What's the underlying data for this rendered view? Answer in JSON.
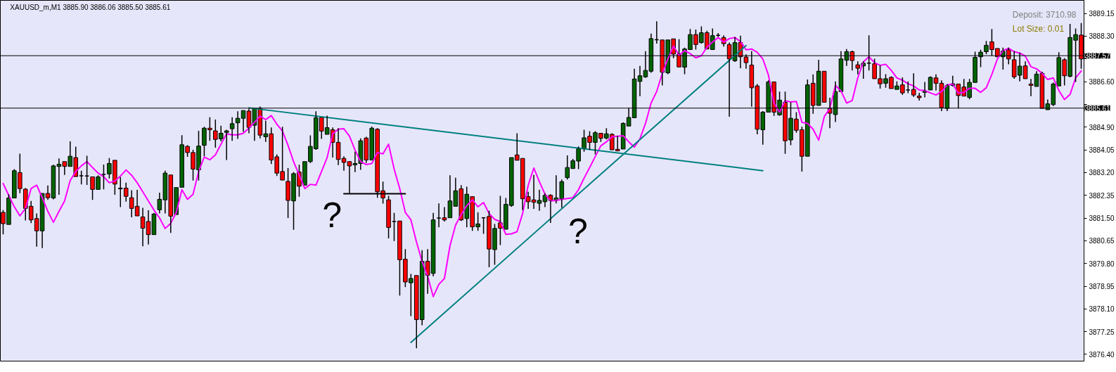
{
  "chart_data": {
    "type": "candlestick",
    "title": "XAUUSD_m,M1 3885.90 3886.06 3885.50 3885.61",
    "annotations": [
      "Deposit: 3710.98",
      "Lot Size: 0.01",
      "?",
      "?"
    ],
    "categories": [
      null,
      null,
      null,
      null,
      null,
      null,
      null,
      null,
      null,
      null,
      null,
      null,
      null,
      null,
      null,
      null,
      null,
      null,
      null,
      null,
      null,
      null,
      null,
      null,
      null,
      null,
      null,
      null,
      null,
      null,
      null,
      null,
      null,
      null,
      null,
      null,
      null,
      null,
      null,
      null,
      null,
      null,
      null,
      null,
      null,
      null,
      null,
      null,
      null,
      null,
      null,
      null,
      null,
      null,
      null,
      null,
      null,
      null,
      null,
      null,
      null,
      null,
      null,
      null,
      null,
      null,
      null,
      null,
      null,
      null,
      null,
      null,
      null,
      null,
      null,
      null,
      null,
      null,
      null,
      null,
      null,
      null,
      null,
      null,
      null,
      null,
      null,
      null,
      null,
      null,
      null,
      null,
      null,
      null,
      null,
      null,
      null,
      null,
      null,
      null,
      null,
      null,
      null,
      null,
      null,
      null,
      null,
      null,
      null,
      null,
      null,
      null,
      null,
      null,
      null,
      null,
      null,
      null,
      null,
      null,
      null,
      null,
      null,
      null,
      null,
      null,
      null,
      null,
      null,
      null,
      null,
      null,
      null,
      null,
      null,
      null,
      null,
      null,
      null,
      null,
      null,
      null,
      null,
      null,
      null,
      null,
      null,
      null,
      null,
      null,
      null,
      null,
      null,
      null,
      null,
      null,
      null,
      null,
      null,
      null,
      null,
      null,
      null,
      null,
      null,
      null,
      null,
      null,
      null,
      null,
      null,
      null,
      null,
      null,
      null,
      null,
      null,
      null,
      null,
      null,
      null,
      null,
      null,
      null,
      null,
      null,
      null,
      null,
      null,
      null,
      null,
      null,
      null,
      null
    ],
    "ohlc": [
      [
        3881.71,
        3881.8,
        3880.89,
        3881.29
      ],
      [
        3881.26,
        3882.39,
        3881.23,
        3882.25
      ],
      [
        3882.25,
        3883.33,
        3882.22,
        3883.27
      ],
      [
        3883.2,
        3883.91,
        3882.43,
        3882.6
      ],
      [
        3882.58,
        3882.62,
        3881.41,
        3881.86
      ],
      [
        3881.94,
        3882.14,
        3881.31,
        3881.43
      ],
      [
        3881.48,
        3881.67,
        3880.43,
        3881.02
      ],
      [
        3881.02,
        3882.45,
        3880.38,
        3882.42
      ],
      [
        3882.42,
        3882.72,
        3882.18,
        3882.26
      ],
      [
        3882.25,
        3883.49,
        3882.2,
        3883.45
      ],
      [
        3883.43,
        3883.73,
        3882.37,
        3883.51
      ],
      [
        3883.61,
        3883.64,
        3883.11,
        3883.43
      ],
      [
        3883.43,
        3884.37,
        3883.41,
        3883.81
      ],
      [
        3883.76,
        3884.17,
        3883.03,
        3883.05
      ],
      [
        3883.08,
        3883.27,
        3882.76,
        3883.08
      ],
      [
        3883.07,
        3883.83,
        3882.74,
        3883.07
      ],
      [
        3883.04,
        3883.06,
        3882.18,
        3882.57
      ],
      [
        3882.57,
        3883.1,
        3882.55,
        3883.04
      ],
      [
        3883.13,
        3883.5,
        3882.57,
        3883.13
      ],
      [
        3883.15,
        3883.74,
        3882.98,
        3883.54
      ],
      [
        3883.66,
        3883.68,
        3882.37,
        3882.77
      ],
      [
        3882.59,
        3883.03,
        3881.91,
        3882.62
      ],
      [
        3882.62,
        3882.82,
        3882.11,
        3882.31
      ],
      [
        3882.26,
        3882.54,
        3881.53,
        3881.86
      ],
      [
        3881.94,
        3882.55,
        3881.56,
        3881.58
      ],
      [
        3881.54,
        3881.88,
        3880.44,
        3881.12
      ],
      [
        3881.37,
        3881.79,
        3880.51,
        3880.88
      ],
      [
        3880.88,
        3881.69,
        3880.86,
        3881.65
      ],
      [
        3881.81,
        3882.45,
        3881.67,
        3882.2
      ],
      [
        3882.18,
        3883.27,
        3881.67,
        3883.18
      ],
      [
        3883.11,
        3883.13,
        3880.94,
        3881.57
      ],
      [
        3881.63,
        3882.67,
        3881.6,
        3882.64
      ],
      [
        3882.65,
        3884.6,
        3882.62,
        3884.24
      ],
      [
        3884.18,
        3884.22,
        3883.79,
        3883.95
      ],
      [
        3883.95,
        3884.05,
        3882.9,
        3883.33
      ],
      [
        3883.3,
        3884.76,
        3882.9,
        3884.19
      ],
      [
        3884.22,
        3884.91,
        3883.81,
        3884.86
      ],
      [
        3884.86,
        3885.27,
        3884.39,
        3884.8
      ],
      [
        3884.76,
        3885.18,
        3884.13,
        3884.44
      ],
      [
        3884.46,
        3884.95,
        3884.37,
        3884.67
      ],
      [
        3884.7,
        3884.8,
        3883.67,
        3884.76
      ],
      [
        3884.84,
        3885.27,
        3884.39,
        3885.03
      ],
      [
        3885.06,
        3885.49,
        3884.46,
        3885.23
      ],
      [
        3885.23,
        3885.55,
        3884.72,
        3885.52
      ],
      [
        3885.5,
        3885.59,
        3884.67,
        3884.89
      ],
      [
        3884.97,
        3885.62,
        3884.39,
        3885.59
      ],
      [
        3885.6,
        3885.67,
        3884.48,
        3884.6
      ],
      [
        3884.54,
        3885.14,
        3884.35,
        3884.65
      ],
      [
        3884.65,
        3884.89,
        3883.52,
        3883.67
      ],
      [
        3883.79,
        3883.88,
        3883.07,
        3883.18
      ],
      [
        3883.24,
        3884.91,
        3882.9,
        3882.92
      ],
      [
        3882.87,
        3883.37,
        3881.5,
        3882.16
      ],
      [
        3882.14,
        3883.22,
        3881.06,
        3883.16
      ],
      [
        3883.22,
        3883.49,
        3882.3,
        3882.69
      ],
      [
        3882.73,
        3883.64,
        3882.7,
        3883.61
      ],
      [
        3883.61,
        3884.59,
        3883.56,
        3884.18
      ],
      [
        3884.09,
        3885.49,
        3884.05,
        3885.25
      ],
      [
        3885.26,
        3885.29,
        3884.46,
        3884.75
      ],
      [
        3884.63,
        3885.33,
        3884.6,
        3884.88
      ],
      [
        3884.8,
        3884.89,
        3883.76,
        3884.33
      ],
      [
        3884.33,
        3884.86,
        3883.48,
        3883.69
      ],
      [
        3883.73,
        3883.81,
        3883.27,
        3883.58
      ],
      [
        3883.61,
        3883.63,
        3882.43,
        3883.45
      ],
      [
        3883.49,
        3883.98,
        3883.22,
        3883.54
      ],
      [
        3883.54,
        3884.48,
        3883.3,
        3884.39
      ],
      [
        3884.49,
        3884.54,
        3883.56,
        3883.67
      ],
      [
        3883.67,
        3884.92,
        3883.64,
        3884.86
      ],
      [
        3884.82,
        3884.86,
        3882.26,
        3882.48
      ],
      [
        3882.52,
        3882.86,
        3882.04,
        3882.25
      ],
      [
        3882.18,
        3882.33,
        3880.74,
        3881.15
      ],
      [
        3881.37,
        3881.69,
        3880.64,
        3881.37
      ],
      [
        3881.39,
        3881.41,
        3878.6,
        3879.94
      ],
      [
        3879.96,
        3880.34,
        3878.92,
        3879.11
      ],
      [
        3879.08,
        3879.41,
        3877.83,
        3879.24
      ],
      [
        3879.35,
        3879.36,
        3876.63,
        3877.7
      ],
      [
        3877.7,
        3880.3,
        3877.49,
        3879.88
      ],
      [
        3879.88,
        3880.34,
        3878.67,
        3879.36
      ],
      [
        3879.43,
        3881.69,
        3879.32,
        3881.43
      ],
      [
        3881.5,
        3882.05,
        3881.15,
        3881.5
      ],
      [
        3881.51,
        3881.91,
        3881.37,
        3881.43
      ],
      [
        3881.51,
        3883.1,
        3881.48,
        3882.14
      ],
      [
        3881.94,
        3883.01,
        3881.92,
        3882.52
      ],
      [
        3882.59,
        3882.73,
        3881.39,
        3881.43
      ],
      [
        3881.48,
        3882.67,
        3881.15,
        3882.39
      ],
      [
        3882.3,
        3882.33,
        3881.02,
        3881.17
      ],
      [
        3881.17,
        3881.71,
        3881.02,
        3881.28
      ],
      [
        3881.51,
        3881.54,
        3880.91,
        3881.51
      ],
      [
        3881.56,
        3881.77,
        3879.66,
        3880.34
      ],
      [
        3880.32,
        3881.28,
        3879.75,
        3881.11
      ],
      [
        3881.32,
        3882.33,
        3880.49,
        3881.12
      ],
      [
        3881.08,
        3882.25,
        3881.06,
        3882.01
      ],
      [
        3881.97,
        3883.79,
        3881.92,
        3883.76
      ],
      [
        3883.86,
        3884.67,
        3883.63,
        3883.66
      ],
      [
        3883.73,
        3883.74,
        3881.8,
        3882.22
      ],
      [
        3882.3,
        3882.48,
        3881.84,
        3882.11
      ],
      [
        3882.18,
        3883.11,
        3881.84,
        3882.09
      ],
      [
        3882.05,
        3882.56,
        3881.77,
        3882.16
      ],
      [
        3882.11,
        3882.43,
        3881.91,
        3882.35
      ],
      [
        3882.35,
        3882.39,
        3881.32,
        3882.16
      ],
      [
        3882.16,
        3883.1,
        3882.05,
        3882.25
      ],
      [
        3882.22,
        3882.94,
        3881.88,
        3882.86
      ],
      [
        3883.01,
        3883.84,
        3882.94,
        3883.39
      ],
      [
        3883.35,
        3883.71,
        3883.33,
        3883.64
      ],
      [
        3883.63,
        3884.18,
        3883.33,
        3884.09
      ],
      [
        3884.09,
        3884.8,
        3883.98,
        3884.5
      ],
      [
        3884.56,
        3884.75,
        3884.05,
        3884.33
      ],
      [
        3884.33,
        3884.75,
        3883.88,
        3884.69
      ],
      [
        3884.67,
        3884.69,
        3884.35,
        3884.48
      ],
      [
        3884.49,
        3884.86,
        3884.44,
        3884.65
      ],
      [
        3884.63,
        3884.67,
        3884.04,
        3884.05
      ],
      [
        3884.07,
        3884.58,
        3884.0,
        3884.01
      ],
      [
        3884.08,
        3885.08,
        3884.05,
        3885.04
      ],
      [
        3884.94,
        3885.62,
        3884.91,
        3885.26
      ],
      [
        3885.25,
        3887.08,
        3885.23,
        3886.7
      ],
      [
        3886.61,
        3887.19,
        3886.06,
        3886.82
      ],
      [
        3886.78,
        3887.74,
        3886.74,
        3887.02
      ],
      [
        3886.99,
        3888.4,
        3886.93,
        3888.21
      ],
      [
        3888.17,
        3888.86,
        3888.02,
        3888.17
      ],
      [
        3888.16,
        3888.19,
        3886.46,
        3886.95
      ],
      [
        3886.93,
        3888.19,
        3886.88,
        3888.16
      ],
      [
        3888.2,
        3888.21,
        3887.48,
        3887.63
      ],
      [
        3887.63,
        3888.19,
        3887.12,
        3887.15
      ],
      [
        3887.14,
        3887.87,
        3886.88,
        3887.82
      ],
      [
        3887.8,
        3888.57,
        3887.79,
        3888.36
      ],
      [
        3888.36,
        3888.55,
        3887.8,
        3887.99
      ],
      [
        3888.06,
        3888.67,
        3888.02,
        3888.43
      ],
      [
        3888.43,
        3888.5,
        3887.79,
        3887.82
      ],
      [
        3887.8,
        3888.59,
        3887.79,
        3888.32
      ],
      [
        3888.33,
        3888.42,
        3888.27,
        3888.33
      ],
      [
        3888.25,
        3888.33,
        3887.91,
        3888.02
      ],
      [
        3887.99,
        3888.06,
        3885.29,
        3887.45
      ],
      [
        3887.38,
        3888.27,
        3887.34,
        3888.06
      ],
      [
        3888.06,
        3888.32,
        3887.1,
        3887.53
      ],
      [
        3887.52,
        3887.62,
        3887.08,
        3887.31
      ],
      [
        3887.22,
        3887.74,
        3885.66,
        3886.37
      ],
      [
        3886.44,
        3886.51,
        3884.63,
        3884.82
      ],
      [
        3884.8,
        3885.5,
        3884.24,
        3885.46
      ],
      [
        3885.46,
        3886.65,
        3885.44,
        3886.59
      ],
      [
        3886.59,
        3886.61,
        3885.32,
        3885.46
      ],
      [
        3885.36,
        3886.23,
        3885.32,
        3885.91
      ],
      [
        3885.83,
        3886.23,
        3883.9,
        3884.39
      ],
      [
        3884.42,
        3885.83,
        3884.22,
        3885.23
      ],
      [
        3885.2,
        3885.46,
        3884.69,
        3884.78
      ],
      [
        3884.8,
        3884.91,
        3883.24,
        3883.81
      ],
      [
        3883.81,
        3886.68,
        3883.79,
        3886.48
      ],
      [
        3886.54,
        3886.87,
        3885.4,
        3885.71
      ],
      [
        3885.71,
        3887.42,
        3885.69,
        3886.99
      ],
      [
        3886.99,
        3886.99,
        3885.8,
        3885.83
      ],
      [
        3885.59,
        3886.0,
        3884.86,
        3885.42
      ],
      [
        3885.37,
        3886.61,
        3885.09,
        3886.23
      ],
      [
        3886.23,
        3887.74,
        3886.2,
        3887.45
      ],
      [
        3887.4,
        3887.82,
        3887.19,
        3887.72
      ],
      [
        3887.72,
        3887.76,
        3887.02,
        3887.39
      ],
      [
        3887.23,
        3887.36,
        3886.87,
        3887.1
      ],
      [
        3887.19,
        3887.36,
        3886.71,
        3887.29
      ],
      [
        3887.29,
        3888.33,
        3887.02,
        3887.29
      ],
      [
        3887.27,
        3887.46,
        3886.68,
        3886.71
      ],
      [
        3886.71,
        3887.21,
        3886.34,
        3886.52
      ],
      [
        3886.54,
        3886.88,
        3886.37,
        3886.71
      ],
      [
        3886.76,
        3886.8,
        3886.31,
        3886.34
      ],
      [
        3886.31,
        3886.61,
        3886.29,
        3886.44
      ],
      [
        3886.48,
        3886.76,
        3886.1,
        3886.18
      ],
      [
        3886.29,
        3886.61,
        3886.17,
        3886.29
      ],
      [
        3886.31,
        3886.91,
        3886.03,
        3886.1
      ],
      [
        3886.06,
        3886.18,
        3885.89,
        3886.0
      ],
      [
        3886.2,
        3886.59,
        3886.01,
        3886.25
      ],
      [
        3886.29,
        3886.8,
        3886.27,
        3886.76
      ],
      [
        3886.74,
        3886.87,
        3886.27,
        3886.54
      ],
      [
        3886.54,
        3886.65,
        3885.5,
        3885.63
      ],
      [
        3885.6,
        3886.51,
        3885.5,
        3886.46
      ],
      [
        3886.46,
        3886.82,
        3886.42,
        3886.52
      ],
      [
        3886.51,
        3886.52,
        3885.6,
        3886.08
      ],
      [
        3886.4,
        3886.7,
        3886.03,
        3886.06
      ],
      [
        3886.01,
        3886.7,
        3885.94,
        3886.57
      ],
      [
        3886.57,
        3887.72,
        3886.54,
        3887.51
      ],
      [
        3887.53,
        3887.79,
        3887.14,
        3887.7
      ],
      [
        3887.72,
        3888.12,
        3887.63,
        3887.96
      ],
      [
        3888.09,
        3888.57,
        3887.57,
        3887.8
      ],
      [
        3887.84,
        3887.87,
        3887.5,
        3887.53
      ],
      [
        3887.53,
        3887.87,
        3887.05,
        3887.74
      ],
      [
        3887.79,
        3887.87,
        3887.25,
        3887.45
      ],
      [
        3887.42,
        3887.74,
        3886.71,
        3886.78
      ],
      [
        3886.84,
        3887.68,
        3886.61,
        3887.18
      ],
      [
        3887.19,
        3887.36,
        3886.68,
        3886.71
      ],
      [
        3886.51,
        3886.7,
        3886.06,
        3886.46
      ],
      [
        3886.42,
        3886.99,
        3886.4,
        3886.88
      ],
      [
        3886.91,
        3886.97,
        3885.59,
        3885.6
      ],
      [
        3885.55,
        3885.93,
        3885.54,
        3885.77
      ],
      [
        3885.74,
        3886.57,
        3885.69,
        3886.51
      ],
      [
        3886.44,
        3887.7,
        3886.42,
        3887.5
      ],
      [
        3887.42,
        3887.48,
        3886.46,
        3886.82
      ],
      [
        3886.8,
        3888.76,
        3886.76,
        3888.25
      ],
      [
        3888.15,
        3888.59,
        3886.59,
        3888.36
      ],
      [
        3888.34,
        3888.79,
        3887.08,
        3887.45
      ]
    ],
    "colors": [
      "#ff0000",
      "#006400",
      "#006400",
      "#ff0000",
      "#ff0000",
      "#ff0000",
      "#ff0000",
      "#006400",
      "#ff0000",
      "#006400",
      "#006400",
      "#ff0000",
      "#006400",
      "#ff0000",
      "#000000",
      "#000000",
      "#ff0000",
      "#006400",
      "#000000",
      "#006400",
      "#ff0000",
      "#006400",
      "#ff0000",
      "#ff0000",
      "#ff0000",
      "#ff0000",
      "#ff0000",
      "#006400",
      "#006400",
      "#006400",
      "#ff0000",
      "#006400",
      "#006400",
      "#ff0000",
      "#ff0000",
      "#006400",
      "#006400",
      "#ff0000",
      "#ff0000",
      "#006400",
      "#006400",
      "#006400",
      "#006400",
      "#006400",
      "#ff0000",
      "#006400",
      "#ff0000",
      "#006400",
      "#ff0000",
      "#ff0000",
      "#ff0000",
      "#ff0000",
      "#006400",
      "#ff0000",
      "#006400",
      "#006400",
      "#006400",
      "#ff0000",
      "#006400",
      "#ff0000",
      "#ff0000",
      "#ff0000",
      "#ff0000",
      "#006400",
      "#006400",
      "#ff0000",
      "#006400",
      "#ff0000",
      "#ff0000",
      "#ff0000",
      "#000000",
      "#ff0000",
      "#ff0000",
      "#006400",
      "#ff0000",
      "#006400",
      "#ff0000",
      "#006400",
      "#000000",
      "#ff0000",
      "#006400",
      "#006400",
      "#ff0000",
      "#006400",
      "#ff0000",
      "#006400",
      "#000000",
      "#ff0000",
      "#006400",
      "#ff0000",
      "#006400",
      "#006400",
      "#ff0000",
      "#ff0000",
      "#ff0000",
      "#ff0000",
      "#006400",
      "#006400",
      "#ff0000",
      "#006400",
      "#006400",
      "#006400",
      "#006400",
      "#006400",
      "#006400",
      "#ff0000",
      "#006400",
      "#ff0000",
      "#006400",
      "#ff0000",
      "#ff0000",
      "#006400",
      "#006400",
      "#006400",
      "#006400",
      "#006400",
      "#006400",
      "#000000",
      "#ff0000",
      "#006400",
      "#ff0000",
      "#ff0000",
      "#006400",
      "#006400",
      "#ff0000",
      "#006400",
      "#ff0000",
      "#006400",
      "#000000",
      "#ff0000",
      "#ff0000",
      "#006400",
      "#ff0000",
      "#ff0000",
      "#ff0000",
      "#ff0000",
      "#006400",
      "#006400",
      "#ff0000",
      "#006400",
      "#ff0000",
      "#006400",
      "#ff0000",
      "#ff0000",
      "#006400",
      "#ff0000",
      "#006400",
      "#ff0000",
      "#ff0000",
      "#006400",
      "#006400",
      "#006400",
      "#ff0000",
      "#ff0000",
      "#006400",
      "#000000",
      "#ff0000",
      "#ff0000",
      "#006400",
      "#ff0000",
      "#006400",
      "#ff0000",
      "#000000",
      "#ff0000",
      "#ff0000",
      "#006400",
      "#006400",
      "#ff0000",
      "#ff0000",
      "#006400",
      "#006400",
      "#ff0000",
      "#ff0000",
      "#006400",
      "#006400",
      "#006400",
      "#006400",
      "#ff0000",
      "#ff0000",
      "#006400",
      "#ff0000",
      "#ff0000",
      "#006400",
      "#ff0000",
      "#ff0000",
      "#006400",
      "#ff0000",
      "#006400",
      "#006400",
      "#006400",
      "#ff0000",
      "#006400",
      "#006400",
      "#ff0000"
    ],
    "series": [
      {
        "type": "line",
        "color": "#ff00ff",
        "values": [
          3882.79,
          3882.35,
          3881.92,
          3881.58,
          3881.86,
          3882.6,
          3882.73,
          3882.26,
          3881.75,
          3881.34,
          3881.75,
          3882.14,
          3882.9,
          3883.24,
          3883.45,
          3883.61,
          3883.39,
          3883.18,
          3883.04,
          3882.82,
          3882.88,
          3883.07,
          3883.3,
          3883.1,
          3882.82,
          3882.48,
          3882.14,
          3881.8,
          3881.5,
          3881.11,
          3881.3,
          3881.71,
          3882.56,
          3882.2,
          3882.39,
          3883.24,
          3883.78,
          3883.68,
          3883.86,
          3884.26,
          3884.65,
          3884.61,
          3884.61,
          3884.67,
          3884.86,
          3885.08,
          3885.31,
          3885.18,
          3885.33,
          3885.01,
          3884.75,
          3884.22,
          3883.61,
          3883.11,
          3882.6,
          3882.76,
          3882.73,
          3883.24,
          3883.76,
          3884.65,
          3884.82,
          3884.84,
          3884.56,
          3884.04,
          3883.61,
          3883.5,
          3883.54,
          3883.95,
          3883.9,
          3884.26,
          3883.33,
          3882.6,
          3881.71,
          3881.43,
          3880.6,
          3879.88,
          3879.32,
          3878.56,
          3879.02,
          3879.24,
          3880.47,
          3881.24,
          3881.63,
          3881.97,
          3882.18,
          3881.92,
          3882.08,
          3881.67,
          3881.45,
          3881.37,
          3880.89,
          3880.91,
          3880.99,
          3881.67,
          3882.73,
          3883.37,
          3882.86,
          3882.39,
          3882.14,
          3882.16,
          3882.2,
          3882.23,
          3882.26,
          3882.56,
          3882.99,
          3883.39,
          3883.8,
          3884.2,
          3884.35,
          3884.54,
          3884.56,
          3884.58,
          3884.35,
          3884.15,
          3884.46,
          3885.04,
          3885.8,
          3886.23,
          3886.91,
          3887.45,
          3887.93,
          3887.59,
          3887.76,
          3887.65,
          3887.49,
          3887.57,
          3887.89,
          3888.08,
          3888.25,
          3888.08,
          3888.21,
          3888.25,
          3888.1,
          3887.79,
          3887.82,
          3887.7,
          3887.45,
          3886.85,
          3885.8,
          3885.46,
          3885.89,
          3885.84,
          3885.86,
          3885.08,
          3885.04,
          3884.82,
          3884.41,
          3885.29,
          3885.6,
          3886.46,
          3886.25,
          3885.8,
          3885.89,
          3886.74,
          3887.34,
          3887.53,
          3887.31,
          3887.21,
          3887.25,
          3887.02,
          3886.74,
          3886.65,
          3886.52,
          3886.44,
          3886.29,
          3886.27,
          3886.18,
          3886.1,
          3886.23,
          3886.48,
          3886.51,
          3886.17,
          3886.2,
          3886.35,
          3886.35,
          3886.2,
          3886.37,
          3886.87,
          3887.45,
          3887.76,
          3887.85,
          3887.72,
          3887.67,
          3887.55,
          3887.16,
          3887.08,
          3886.91,
          3886.68,
          3886.74,
          3886.27,
          3885.93,
          3886.12,
          3886.74,
          3887.0
        ]
      },
      {
        "type": "line",
        "color": "#008080",
        "values": [
          null,
          null,
          null,
          null,
          null,
          null,
          null,
          null,
          null,
          null,
          null,
          null,
          null,
          null,
          null,
          null,
          null,
          null,
          null,
          null,
          null,
          null,
          null,
          null,
          null,
          null,
          null,
          null,
          null,
          null,
          null,
          null,
          null,
          null,
          null,
          null,
          null,
          null,
          null,
          null,
          null,
          null,
          null,
          null,
          3885.62,
          null,
          null,
          null,
          null,
          null,
          null,
          null,
          null,
          null,
          null,
          null,
          null,
          null,
          null,
          null,
          null,
          null,
          null,
          null,
          null,
          null,
          null,
          null,
          null,
          null,
          null,
          null,
          null,
          null,
          null,
          null,
          null,
          null,
          null,
          null,
          null,
          null,
          null,
          null,
          null,
          null,
          null,
          null,
          null,
          null,
          null,
          null,
          null,
          null,
          null,
          null,
          null,
          null,
          null,
          null,
          null,
          null,
          null,
          null,
          null,
          null,
          null,
          null,
          null,
          null,
          null,
          null,
          null,
          null,
          null,
          null,
          null,
          null,
          null,
          null,
          null,
          null,
          null,
          null,
          null,
          null,
          null,
          null,
          null,
          null,
          null,
          null,
          null,
          null,
          null,
          null,
          3883.27,
          null,
          null,
          null,
          null,
          null,
          null,
          null,
          null,
          null,
          null,
          null,
          null,
          null,
          null,
          null,
          null,
          null,
          null,
          null,
          null,
          null,
          null,
          null,
          null,
          null,
          null,
          null,
          null,
          null,
          null,
          null,
          null,
          null,
          null,
          null,
          null,
          null,
          null,
          null,
          null,
          null,
          null,
          null,
          null,
          null,
          null,
          null,
          null,
          null,
          null,
          null,
          null,
          null,
          null,
          null,
          null,
          null
        ]
      },
      {
        "type": "line",
        "color": "#008080",
        "values": [
          null,
          null,
          null,
          null,
          null,
          null,
          null,
          null,
          null,
          null,
          null,
          null,
          null,
          null,
          null,
          null,
          null,
          null,
          null,
          null,
          null,
          null,
          null,
          null,
          null,
          null,
          null,
          null,
          null,
          null,
          null,
          null,
          null,
          null,
          null,
          null,
          null,
          null,
          null,
          null,
          null,
          null,
          null,
          null,
          null,
          null,
          null,
          null,
          null,
          null,
          null,
          null,
          null,
          null,
          null,
          null,
          null,
          null,
          null,
          null,
          null,
          null,
          null,
          null,
          null,
          null,
          null,
          null,
          null,
          null,
          null,
          null,
          null,
          3876.85,
          null,
          null,
          null,
          null,
          null,
          null,
          null,
          null,
          null,
          null,
          null,
          null,
          null,
          null,
          null,
          null,
          null,
          null,
          null,
          null,
          null,
          null,
          null,
          null,
          null,
          null,
          null,
          null,
          null,
          null,
          null,
          null,
          null,
          null,
          null,
          null,
          null,
          null,
          null,
          null,
          null,
          null,
          null,
          null,
          null,
          null,
          null,
          null,
          null,
          null,
          null,
          null,
          null,
          null,
          null,
          null,
          null,
          null,
          null,
          3887.95,
          null,
          null,
          null,
          null,
          null,
          null,
          null,
          null,
          null,
          null,
          null,
          null,
          null,
          null,
          null,
          null,
          null,
          null,
          null,
          null,
          null,
          null,
          null,
          null,
          null,
          null,
          null,
          null,
          null,
          null,
          null,
          null,
          null,
          null,
          null,
          null,
          null,
          null,
          null,
          null,
          null,
          null,
          null,
          null,
          null,
          null,
          null,
          null,
          null,
          null,
          null,
          null,
          null,
          null,
          null,
          null,
          null,
          null,
          null,
          null
        ]
      },
      {
        "type": "line",
        "color": "#000000",
        "values": [
          null,
          null,
          null,
          null,
          null,
          null,
          null,
          null,
          null,
          null,
          null,
          null,
          null,
          null,
          null,
          null,
          null,
          null,
          null,
          null,
          null,
          null,
          null,
          null,
          null,
          null,
          null,
          null,
          null,
          null,
          null,
          null,
          null,
          null,
          null,
          null,
          null,
          null,
          null,
          null,
          null,
          null,
          null,
          null,
          null,
          null,
          null,
          null,
          null,
          null,
          null,
          null,
          null,
          null,
          null,
          null,
          null,
          null,
          null,
          null,
          null,
          3882.41,
          null,
          null,
          null,
          null,
          null,
          null,
          null,
          null,
          null,
          null,
          3882.41,
          null,
          null,
          null,
          null,
          null,
          null,
          null,
          null,
          null,
          null,
          null,
          null,
          null,
          null,
          null,
          null,
          null,
          null,
          null,
          null,
          null,
          null,
          null,
          null,
          null,
          null,
          null,
          null,
          null,
          null,
          null,
          null,
          null,
          null,
          null,
          null,
          null,
          null,
          null,
          null,
          null,
          null,
          null,
          null,
          null,
          null,
          null,
          null,
          null,
          null,
          null,
          null,
          null,
          null,
          null,
          null,
          null,
          null,
          null,
          null,
          null,
          null,
          null,
          null,
          null,
          null,
          null,
          null,
          null,
          null,
          null,
          null,
          null,
          null,
          null,
          null,
          null,
          null,
          null,
          null,
          null,
          null,
          null,
          null,
          null,
          null,
          null,
          null,
          null,
          null,
          null,
          null,
          null,
          null,
          null,
          null,
          null,
          null,
          null,
          null,
          null,
          null,
          null,
          null,
          null,
          null,
          null,
          null,
          null,
          null,
          null,
          null,
          null,
          null,
          null,
          null,
          null,
          null,
          null,
          null,
          null
        ]
      }
    ],
    "ylim": [
      3876.15,
      3889.64
    ],
    "yticks": [
      {
        "value": 3876.4,
        "label": "3876.40"
      },
      3877.25,
      {
        "value": 3878.1,
        "label": "3878.10"
      },
      3878.95,
      {
        "value": 3879.8,
        "label": "3879.80"
      },
      3880.65,
      {
        "value": 3881.5,
        "label": "3881.50"
      },
      3882.35,
      {
        "value": 3883.2,
        "label": "3883.20"
      },
      3884.05,
      {
        "value": 3884.9,
        "label": "3884.90"
      },
      {
        "value": 3885.75,
        "label": null
      },
      {
        "value": 3886.6,
        "label": "3886.60"
      },
      {
        "value": 3887.45,
        "label": null
      },
      {
        "value": 3888.3,
        "label": "3888.30"
      },
      3889.15
    ],
    "ref_lines": [
      {
        "axis": "y",
        "value": 3887.57,
        "label": "3887.57",
        "color": "#000000"
      },
      {
        "axis": "y",
        "value": 3885.61,
        "label": "3885.61",
        "color": "#000000"
      }
    ],
    "tick_labels": "y"
  }
}
